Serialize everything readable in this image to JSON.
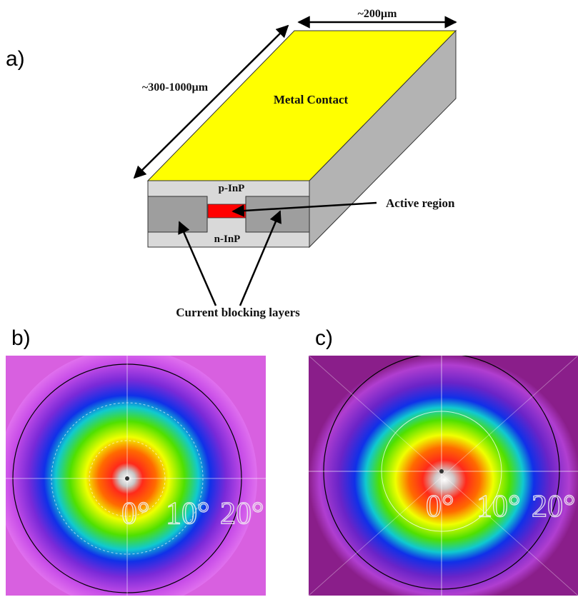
{
  "panels": {
    "a": {
      "label": "a)"
    },
    "b": {
      "label": "b)"
    },
    "c": {
      "label": "c)"
    }
  },
  "laser_diagram": {
    "width_label": "~200µm",
    "length_label": "~300-1000µm",
    "top_label": "Metal Contact",
    "p_layer_label": "p-InP",
    "n_layer_label": "n-InP",
    "active_label": "Active region",
    "blocking_label": "Current blocking layers",
    "colors": {
      "metal_top": "#ffff00",
      "side_face": "#b3b3b3",
      "front_face": "#d9d9d9",
      "blocking_blocks": "#9e9e9e",
      "active": "#ff0000"
    }
  },
  "far_field_b": {
    "ticks": [
      "0°",
      "10°",
      "20°"
    ]
  },
  "far_field_c": {
    "ticks": [
      "0°",
      "10°",
      "20°"
    ]
  }
}
